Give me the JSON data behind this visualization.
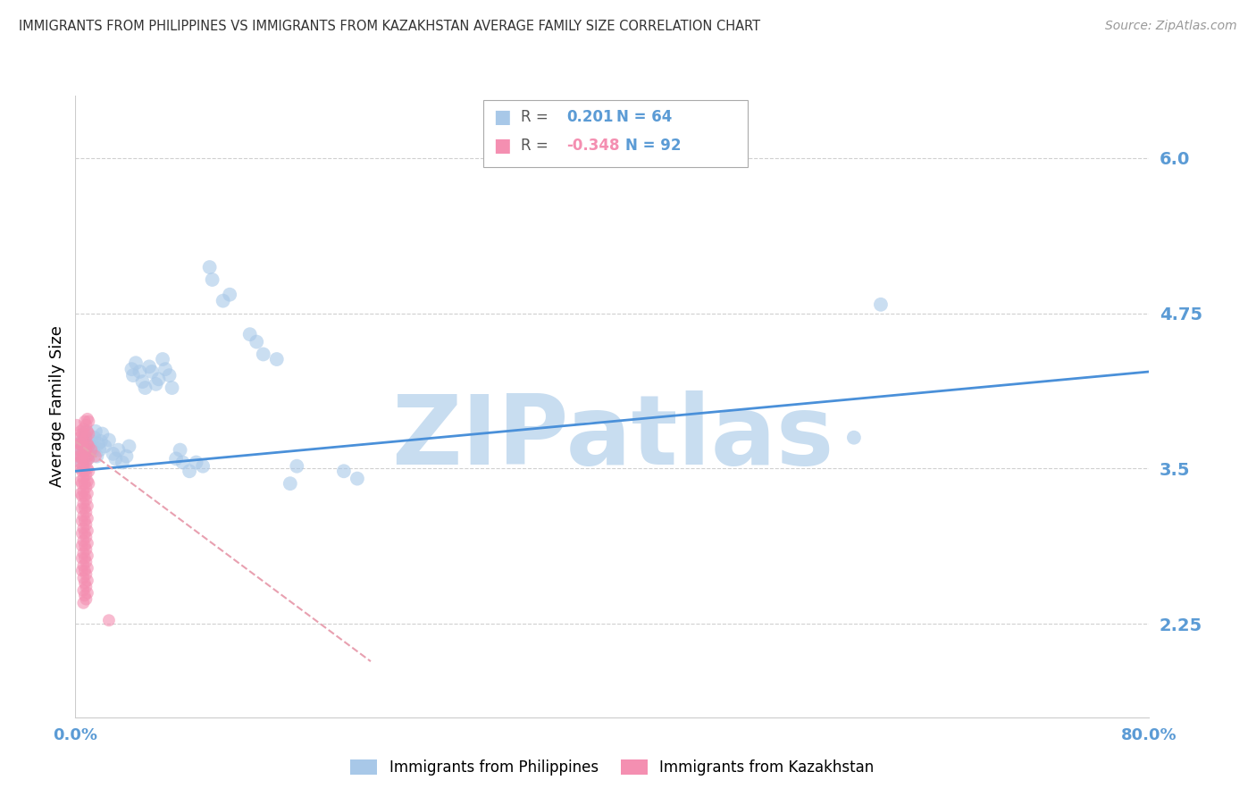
{
  "title": "IMMIGRANTS FROM PHILIPPINES VS IMMIGRANTS FROM KAZAKHSTAN AVERAGE FAMILY SIZE CORRELATION CHART",
  "source": "Source: ZipAtlas.com",
  "ylabel": "Average Family Size",
  "xlim": [
    0.0,
    0.8
  ],
  "ylim": [
    1.5,
    6.5
  ],
  "yticks": [
    2.25,
    3.5,
    4.75,
    6.0
  ],
  "xticks": [
    0.0,
    0.1,
    0.2,
    0.3,
    0.4,
    0.5,
    0.6,
    0.7,
    0.8
  ],
  "watermark": "ZIPatlas",
  "blue_color": "#a8c8e8",
  "pink_color": "#f48fb1",
  "blue_line_color": "#4a90d9",
  "pink_line_color": "#e8a0b0",
  "axis_color": "#5b9bd5",
  "grid_color": "#d0d0d0",
  "watermark_color": "#c8ddf0",
  "philippines_points": [
    [
      0.003,
      3.6
    ],
    [
      0.004,
      3.65
    ],
    [
      0.005,
      3.55
    ],
    [
      0.005,
      3.72
    ],
    [
      0.006,
      3.68
    ],
    [
      0.007,
      3.6
    ],
    [
      0.007,
      3.75
    ],
    [
      0.008,
      3.65
    ],
    [
      0.008,
      3.8
    ],
    [
      0.009,
      3.58
    ],
    [
      0.01,
      3.62
    ],
    [
      0.01,
      3.7
    ],
    [
      0.011,
      3.68
    ],
    [
      0.012,
      3.72
    ],
    [
      0.013,
      3.65
    ],
    [
      0.014,
      3.75
    ],
    [
      0.015,
      3.8
    ],
    [
      0.016,
      3.6
    ],
    [
      0.017,
      3.7
    ],
    [
      0.018,
      3.65
    ],
    [
      0.019,
      3.72
    ],
    [
      0.02,
      3.78
    ],
    [
      0.022,
      3.68
    ],
    [
      0.025,
      3.73
    ],
    [
      0.028,
      3.62
    ],
    [
      0.03,
      3.58
    ],
    [
      0.032,
      3.65
    ],
    [
      0.035,
      3.55
    ],
    [
      0.038,
      3.6
    ],
    [
      0.04,
      3.68
    ],
    [
      0.042,
      4.3
    ],
    [
      0.043,
      4.25
    ],
    [
      0.045,
      4.35
    ],
    [
      0.048,
      4.28
    ],
    [
      0.05,
      4.2
    ],
    [
      0.052,
      4.15
    ],
    [
      0.055,
      4.32
    ],
    [
      0.057,
      4.28
    ],
    [
      0.06,
      4.18
    ],
    [
      0.062,
      4.22
    ],
    [
      0.065,
      4.38
    ],
    [
      0.067,
      4.3
    ],
    [
      0.07,
      4.25
    ],
    [
      0.072,
      4.15
    ],
    [
      0.075,
      3.58
    ],
    [
      0.078,
      3.65
    ],
    [
      0.08,
      3.55
    ],
    [
      0.085,
      3.48
    ],
    [
      0.09,
      3.55
    ],
    [
      0.095,
      3.52
    ],
    [
      0.1,
      5.12
    ],
    [
      0.102,
      5.02
    ],
    [
      0.11,
      4.85
    ],
    [
      0.115,
      4.9
    ],
    [
      0.13,
      4.58
    ],
    [
      0.135,
      4.52
    ],
    [
      0.14,
      4.42
    ],
    [
      0.15,
      4.38
    ],
    [
      0.16,
      3.38
    ],
    [
      0.165,
      3.52
    ],
    [
      0.2,
      3.48
    ],
    [
      0.21,
      3.42
    ],
    [
      0.58,
      3.75
    ],
    [
      0.6,
      4.82
    ]
  ],
  "kazakhstan_points": [
    [
      0.001,
      3.85
    ],
    [
      0.002,
      3.7
    ],
    [
      0.002,
      3.6
    ],
    [
      0.003,
      3.75
    ],
    [
      0.003,
      3.65
    ],
    [
      0.003,
      3.55
    ],
    [
      0.004,
      3.8
    ],
    [
      0.004,
      3.7
    ],
    [
      0.004,
      3.6
    ],
    [
      0.004,
      3.5
    ],
    [
      0.004,
      3.4
    ],
    [
      0.004,
      3.3
    ],
    [
      0.005,
      3.78
    ],
    [
      0.005,
      3.68
    ],
    [
      0.005,
      3.58
    ],
    [
      0.005,
      3.48
    ],
    [
      0.005,
      3.38
    ],
    [
      0.005,
      3.28
    ],
    [
      0.005,
      3.18
    ],
    [
      0.005,
      3.08
    ],
    [
      0.005,
      2.98
    ],
    [
      0.005,
      2.88
    ],
    [
      0.005,
      2.78
    ],
    [
      0.005,
      2.68
    ],
    [
      0.006,
      3.82
    ],
    [
      0.006,
      3.72
    ],
    [
      0.006,
      3.62
    ],
    [
      0.006,
      3.52
    ],
    [
      0.006,
      3.42
    ],
    [
      0.006,
      3.32
    ],
    [
      0.006,
      3.22
    ],
    [
      0.006,
      3.12
    ],
    [
      0.006,
      3.02
    ],
    [
      0.006,
      2.92
    ],
    [
      0.006,
      2.82
    ],
    [
      0.006,
      2.72
    ],
    [
      0.006,
      2.62
    ],
    [
      0.006,
      2.52
    ],
    [
      0.006,
      2.42
    ],
    [
      0.007,
      3.88
    ],
    [
      0.007,
      3.78
    ],
    [
      0.007,
      3.68
    ],
    [
      0.007,
      3.58
    ],
    [
      0.007,
      3.48
    ],
    [
      0.007,
      3.38
    ],
    [
      0.007,
      3.28
    ],
    [
      0.007,
      3.18
    ],
    [
      0.007,
      3.08
    ],
    [
      0.007,
      2.98
    ],
    [
      0.007,
      2.88
    ],
    [
      0.007,
      2.78
    ],
    [
      0.007,
      2.68
    ],
    [
      0.007,
      2.58
    ],
    [
      0.007,
      2.48
    ],
    [
      0.008,
      3.85
    ],
    [
      0.008,
      3.75
    ],
    [
      0.008,
      3.65
    ],
    [
      0.008,
      3.55
    ],
    [
      0.008,
      3.45
    ],
    [
      0.008,
      3.35
    ],
    [
      0.008,
      3.25
    ],
    [
      0.008,
      3.15
    ],
    [
      0.008,
      3.05
    ],
    [
      0.008,
      2.95
    ],
    [
      0.008,
      2.85
    ],
    [
      0.008,
      2.75
    ],
    [
      0.008,
      2.65
    ],
    [
      0.008,
      2.55
    ],
    [
      0.008,
      2.45
    ],
    [
      0.009,
      3.9
    ],
    [
      0.009,
      3.8
    ],
    [
      0.009,
      3.7
    ],
    [
      0.009,
      3.6
    ],
    [
      0.009,
      3.5
    ],
    [
      0.009,
      3.4
    ],
    [
      0.009,
      3.3
    ],
    [
      0.009,
      3.2
    ],
    [
      0.009,
      3.1
    ],
    [
      0.009,
      3.0
    ],
    [
      0.009,
      2.9
    ],
    [
      0.009,
      2.8
    ],
    [
      0.009,
      2.7
    ],
    [
      0.009,
      2.6
    ],
    [
      0.009,
      2.5
    ],
    [
      0.01,
      3.88
    ],
    [
      0.01,
      3.78
    ],
    [
      0.01,
      3.68
    ],
    [
      0.01,
      3.58
    ],
    [
      0.01,
      3.48
    ],
    [
      0.01,
      3.38
    ],
    [
      0.012,
      3.65
    ],
    [
      0.015,
      3.6
    ],
    [
      0.025,
      2.28
    ]
  ],
  "blue_trend_x": [
    0.0,
    0.8
  ],
  "blue_trend_y": [
    3.48,
    4.28
  ],
  "pink_trend_x": [
    0.0,
    0.22
  ],
  "pink_trend_y": [
    3.72,
    1.95
  ]
}
